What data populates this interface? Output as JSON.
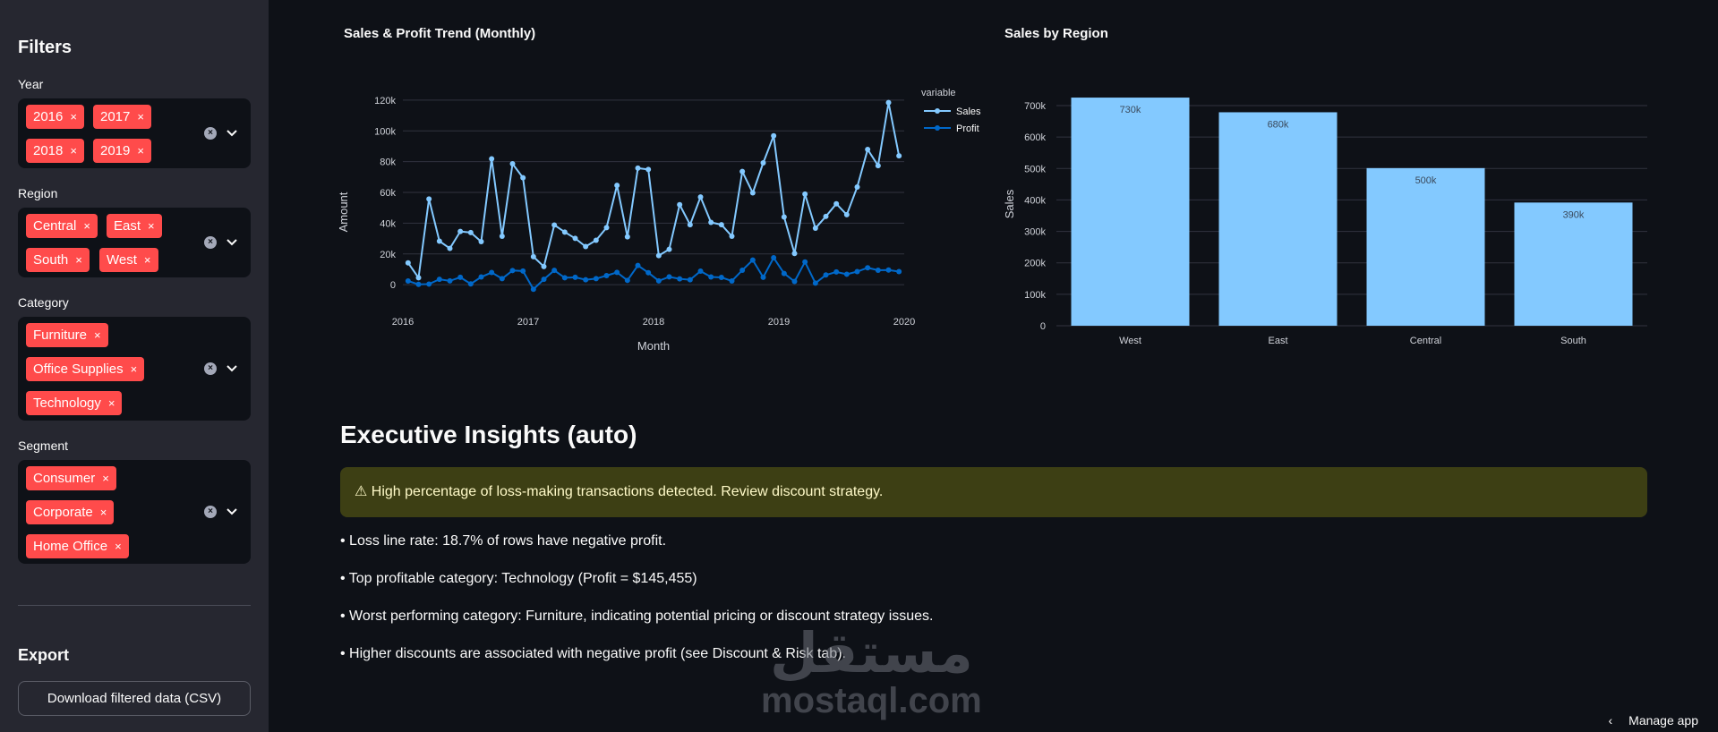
{
  "sidebar": {
    "title": "Filters",
    "filters": [
      {
        "label": "Year",
        "chips": [
          "2016",
          "2017",
          "2018",
          "2019"
        ]
      },
      {
        "label": "Region",
        "chips": [
          "Central",
          "East",
          "South",
          "West"
        ]
      },
      {
        "label": "Category",
        "chips": [
          "Furniture",
          "Office Supplies",
          "Technology"
        ]
      },
      {
        "label": "Segment",
        "chips": [
          "Consumer",
          "Corporate",
          "Home Office"
        ]
      }
    ],
    "chip_remove_glyph": "×",
    "export_title": "Export",
    "download_label": "Download filtered data (CSV)"
  },
  "trend_chart": {
    "title": "Sales & Profit Trend (Monthly)"
  },
  "region_chart": {
    "title": "Sales by Region"
  },
  "chart_data": [
    {
      "type": "line",
      "title": "Sales & Profit Trend (Monthly)",
      "xlabel": "Month",
      "ylabel": "Amount",
      "x_ticks": [
        "2016",
        "2017",
        "2018",
        "2019",
        "2020"
      ],
      "y_ticks": [
        "0",
        "20k",
        "40k",
        "60k",
        "80k",
        "100k",
        "120k"
      ],
      "ylim": [
        -4000,
        124000
      ],
      "legend_title": "variable",
      "legend_position": "top-right",
      "x": [
        "2016-01",
        "2016-02",
        "2016-03",
        "2016-04",
        "2016-05",
        "2016-06",
        "2016-07",
        "2016-08",
        "2016-09",
        "2016-10",
        "2016-11",
        "2016-12",
        "2017-01",
        "2017-02",
        "2017-03",
        "2017-04",
        "2017-05",
        "2017-06",
        "2017-07",
        "2017-08",
        "2017-09",
        "2017-10",
        "2017-11",
        "2017-12",
        "2018-01",
        "2018-02",
        "2018-03",
        "2018-04",
        "2018-05",
        "2018-06",
        "2018-07",
        "2018-08",
        "2018-09",
        "2018-10",
        "2018-11",
        "2018-12",
        "2019-01",
        "2019-02",
        "2019-03",
        "2019-04",
        "2019-05",
        "2019-06",
        "2019-07",
        "2019-08",
        "2019-09",
        "2019-10",
        "2019-11",
        "2019-12"
      ],
      "series": [
        {
          "name": "Sales",
          "color": "#83c9ff",
          "values": [
            14200,
            4500,
            55700,
            28300,
            23600,
            34600,
            33900,
            28000,
            81800,
            31500,
            78600,
            69500,
            18200,
            11800,
            38800,
            34200,
            30100,
            24800,
            28900,
            37100,
            64600,
            31100,
            75800,
            74900,
            18900,
            23000,
            52000,
            39000,
            57000,
            40500,
            39000,
            31500,
            73600,
            59700,
            79200,
            96800,
            44000,
            20300,
            58900,
            36700,
            44400,
            52600,
            45500,
            63500,
            87900,
            77400,
            118400,
            83800
          ]
        },
        {
          "name": "Profit",
          "color": "#0068c9",
          "values": [
            2400,
            200,
            400,
            3500,
            2500,
            4800,
            500,
            5000,
            7900,
            3900,
            9200,
            8900,
            -3000,
            3500,
            9300,
            4500,
            4800,
            3200,
            3900,
            5900,
            8000,
            2800,
            12500,
            7800,
            2500,
            5100,
            3800,
            3200,
            8800,
            5000,
            4700,
            2400,
            9400,
            16000,
            4800,
            17500,
            7300,
            2100,
            14800,
            1000,
            6300,
            8300,
            6800,
            8500,
            11000,
            9400,
            9500,
            8500
          ]
        }
      ]
    },
    {
      "type": "bar",
      "title": "Sales by Region",
      "xlabel": "",
      "ylabel": "Sales",
      "categories": [
        "West",
        "East",
        "Central",
        "South"
      ],
      "values": [
        725458,
        678781,
        501240,
        391722
      ],
      "data_labels": [
        "730k",
        "680k",
        "500k",
        "390k"
      ],
      "y_ticks": [
        "0",
        "100k",
        "200k",
        "300k",
        "400k",
        "500k",
        "600k",
        "700k"
      ],
      "ylim": [
        0,
        700000
      ],
      "color": "#83c9ff"
    }
  ],
  "insights": {
    "heading": "Executive Insights (auto)",
    "warning": "⚠ High percentage of loss-making transactions detected. Review discount strategy.",
    "bullets": [
      "• Loss line rate: 18.7% of rows have negative profit.",
      "• Top profitable category: Technology (Profit = $145,455)",
      "• Worst performing category: Furniture, indicating potential pricing or discount strategy issues.",
      "• Higher discounts are associated with negative profit (see Discount & Risk tab)."
    ]
  },
  "watermark": {
    "arabic": "مستقل",
    "latin": "mostaql.com"
  },
  "footer": {
    "manage_label": "Manage app",
    "chevron": "‹"
  }
}
